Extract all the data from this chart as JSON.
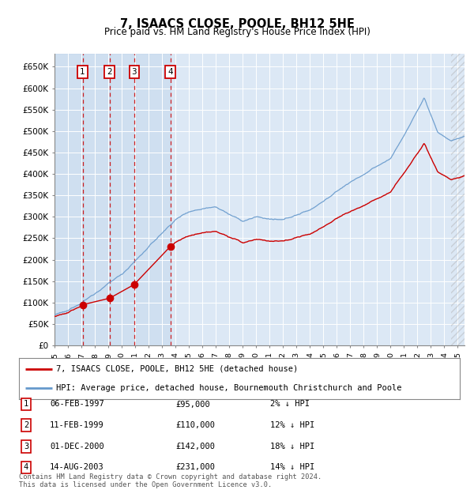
{
  "title": "7, ISAACS CLOSE, POOLE, BH12 5HE",
  "subtitle": "Price paid vs. HM Land Registry's House Price Index (HPI)",
  "ylim": [
    0,
    680000
  ],
  "xlim_start": 1995.0,
  "xlim_end": 2025.5,
  "background_color": "#ffffff",
  "plot_bg_color": "#dce8f5",
  "grid_color": "#ffffff",
  "transactions": [
    {
      "num": 1,
      "date": "06-FEB-1997",
      "price": 95000,
      "pct": "2%",
      "year": 1997.09
    },
    {
      "num": 2,
      "date": "11-FEB-1999",
      "price": 110000,
      "pct": "12%",
      "year": 1999.09
    },
    {
      "num": 3,
      "date": "01-DEC-2000",
      "price": 142000,
      "pct": "18%",
      "year": 2000.92
    },
    {
      "num": 4,
      "date": "14-AUG-2003",
      "price": 231000,
      "pct": "14%",
      "year": 2003.62
    }
  ],
  "legend_line1": "7, ISAACS CLOSE, POOLE, BH12 5HE (detached house)",
  "legend_line2": "HPI: Average price, detached house, Bournemouth Christchurch and Poole",
  "footnote": "Contains HM Land Registry data © Crown copyright and database right 2024.\nThis data is licensed under the Open Government Licence v3.0.",
  "line_color_red": "#cc0000",
  "line_color_blue": "#6699cc",
  "vline_color": "#cc0000",
  "marker_color": "#cc0000",
  "hatch_cutoff": 2024.5
}
